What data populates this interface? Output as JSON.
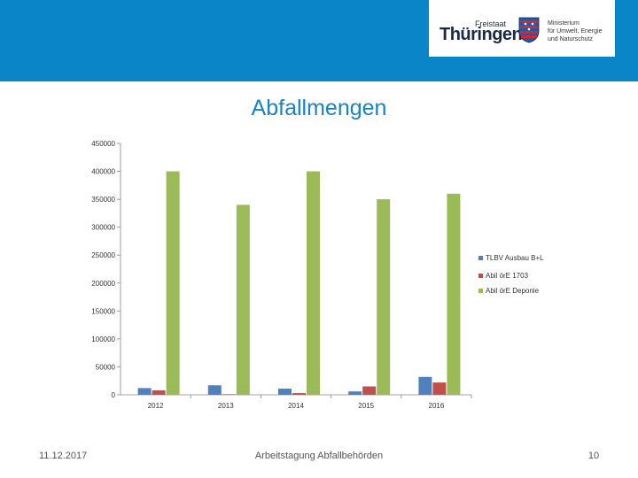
{
  "header": {
    "logo_freistaat": "Freistaat",
    "logo_name": "Thüringen",
    "ministry_lines": [
      "Ministerium",
      "für Umwelt, Energie",
      "und Naturschutz"
    ]
  },
  "title": "Abfallmengen",
  "footer": {
    "date": "11.12.2017",
    "event": "Arbeitstagung Abfallbehörden",
    "page": "10"
  },
  "colors": {
    "band": "#0a86c8",
    "series1": "#4f81bd",
    "series2": "#c0504d",
    "series3": "#9bbb59"
  },
  "chart_data": {
    "type": "bar",
    "title": "",
    "xlabel": "",
    "ylabel": "",
    "categories": [
      "2012",
      "2013",
      "2014",
      "2015",
      "2016"
    ],
    "ylim": [
      0,
      450000
    ],
    "yticks": [
      0,
      50000,
      100000,
      150000,
      200000,
      250000,
      300000,
      350000,
      400000,
      450000
    ],
    "grid": false,
    "legend_position": "right",
    "series": [
      {
        "name": "TLBV Ausbau B+L",
        "color": "#4f81bd",
        "values": [
          12000,
          17000,
          11000,
          6000,
          32000
        ]
      },
      {
        "name": "Abil örE 1703",
        "color": "#c0504d",
        "values": [
          8000,
          1000,
          3000,
          15000,
          22000
        ]
      },
      {
        "name": "Abil örE Deponie",
        "color": "#9bbb59",
        "values": [
          400000,
          340000,
          400000,
          350000,
          360000
        ]
      }
    ]
  }
}
